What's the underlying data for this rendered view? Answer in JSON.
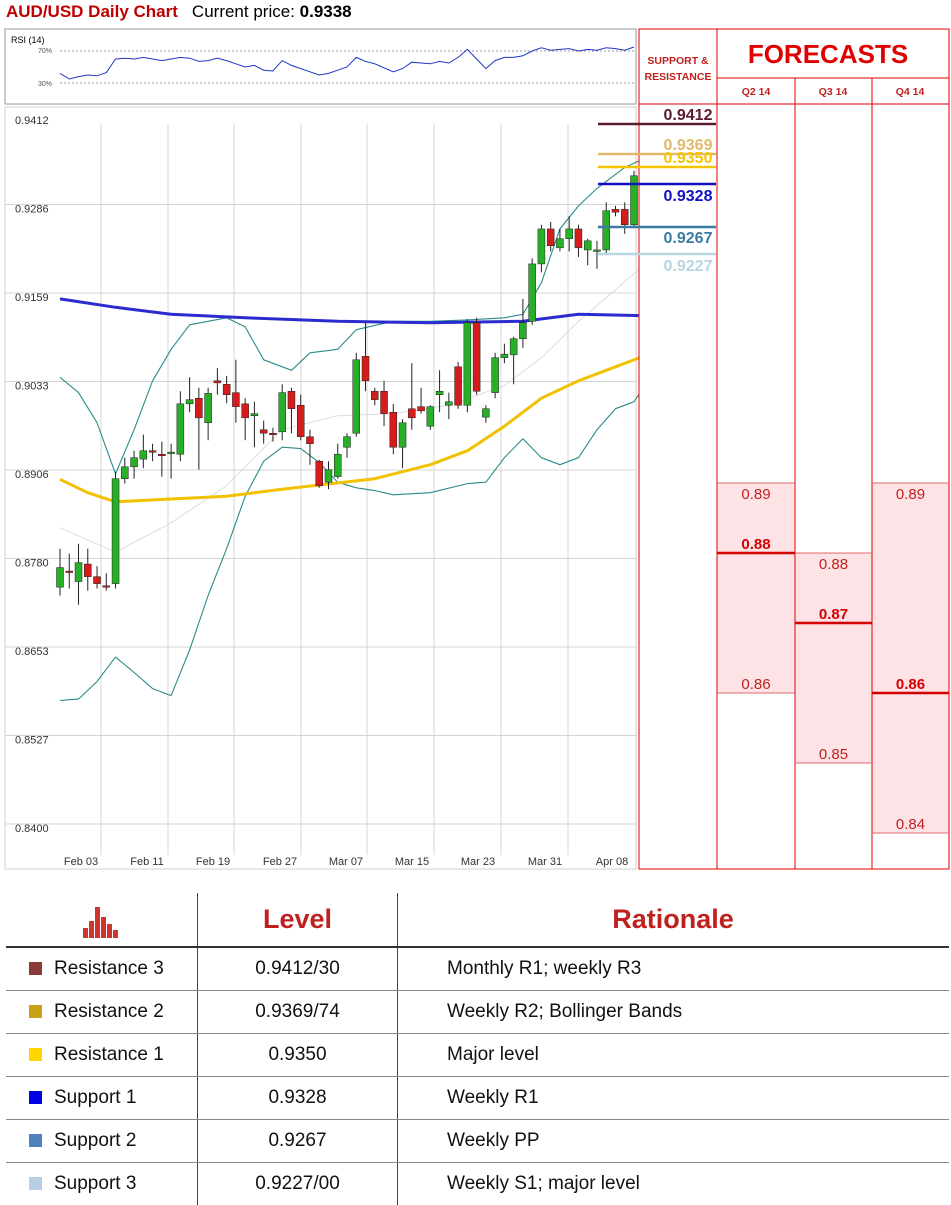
{
  "header": {
    "title": "AUD/USD Daily Chart",
    "price_label": "Current price:",
    "price_value": "0.9338"
  },
  "rsi": {
    "label": "RSI (14)",
    "level_high": "70%",
    "level_low": "30%"
  },
  "colors": {
    "red": "#c0211f",
    "r3": "#5a1a32",
    "r2": "#e2b96a",
    "r1": "#f5c400",
    "s1": "#1010c0",
    "s2": "#3c7ca3",
    "s3": "#b8d6e2",
    "candle_up": "#27b027",
    "candle_down": "#d41c1c",
    "ma_blue": "#2b2bd0",
    "ma_yellow": "#f2c100",
    "bands": "#2b8b8b"
  },
  "panel": {
    "sr_title_line1": "SUPPORT &",
    "sr_title_line2": "RESISTANCE",
    "forecasts_title": "FORECASTS",
    "quarters": [
      "Q2 14",
      "Q3 14",
      "Q4 14"
    ]
  },
  "sr_levels": [
    {
      "label": "0.9412",
      "value": 0.9412,
      "color": "#5a1a32"
    },
    {
      "label": "0.9369",
      "value": 0.9369,
      "color": "#e2b96a"
    },
    {
      "label": "0.9350",
      "value": 0.935,
      "color": "#f5c400"
    },
    {
      "label": "0.9328",
      "value": 0.9328,
      "color": "#1010c0"
    },
    {
      "label": "0.9267",
      "value": 0.9267,
      "color": "#3c7ca3"
    },
    {
      "label": "0.9227",
      "value": 0.9227,
      "color": "#b8d6e2"
    }
  ],
  "forecasts": [
    {
      "quarter": "Q2 14",
      "high": 0.89,
      "mid": 0.88,
      "low": 0.86,
      "high_label": "0.89",
      "mid_label": "0.88",
      "low_label": "0.86"
    },
    {
      "quarter": "Q3 14",
      "high": 0.88,
      "mid": 0.87,
      "low": 0.85,
      "high_label": "0.88",
      "mid_label": "0.87",
      "low_label": "0.85"
    },
    {
      "quarter": "Q4 14",
      "high": 0.89,
      "mid": 0.86,
      "low": 0.84,
      "high_label": "0.89",
      "mid_label": "0.86",
      "low_label": "0.84"
    }
  ],
  "chart_data": {
    "type": "candlestick",
    "y_ticks": [
      "0.9412",
      "0.9286",
      "0.9159",
      "0.9033",
      "0.8906",
      "0.8780",
      "0.8653",
      "0.8527",
      "0.8400"
    ],
    "ylim": [
      0.84,
      0.9412
    ],
    "x_ticks": [
      "Feb 03",
      "Feb 11",
      "Feb 19",
      "Feb 27",
      "Mar 07",
      "Mar 15",
      "Mar 23",
      "Mar 31",
      "Apr 08"
    ],
    "candles": [
      {
        "o": 0.875,
        "h": 0.8805,
        "l": 0.8738,
        "c": 0.8778
      },
      {
        "o": 0.8773,
        "h": 0.8798,
        "l": 0.8748,
        "c": 0.8772
      },
      {
        "o": 0.8758,
        "h": 0.8812,
        "l": 0.8725,
        "c": 0.8785
      },
      {
        "o": 0.8783,
        "h": 0.8805,
        "l": 0.8745,
        "c": 0.8765
      },
      {
        "o": 0.8765,
        "h": 0.878,
        "l": 0.8748,
        "c": 0.8755
      },
      {
        "o": 0.8752,
        "h": 0.877,
        "l": 0.8745,
        "c": 0.875
      },
      {
        "o": 0.8755,
        "h": 0.8915,
        "l": 0.8748,
        "c": 0.8905
      },
      {
        "o": 0.8905,
        "h": 0.8935,
        "l": 0.8898,
        "c": 0.8922
      },
      {
        "o": 0.8922,
        "h": 0.8945,
        "l": 0.8905,
        "c": 0.8935
      },
      {
        "o": 0.8933,
        "h": 0.8968,
        "l": 0.892,
        "c": 0.8945
      },
      {
        "o": 0.8945,
        "h": 0.8955,
        "l": 0.893,
        "c": 0.8943
      },
      {
        "o": 0.894,
        "h": 0.8958,
        "l": 0.8908,
        "c": 0.8938
      },
      {
        "o": 0.8942,
        "h": 0.8955,
        "l": 0.8905,
        "c": 0.8943
      },
      {
        "o": 0.894,
        "h": 0.903,
        "l": 0.893,
        "c": 0.9012
      },
      {
        "o": 0.9012,
        "h": 0.905,
        "l": 0.9,
        "c": 0.9018
      },
      {
        "o": 0.902,
        "h": 0.9035,
        "l": 0.8918,
        "c": 0.8992
      },
      {
        "o": 0.8985,
        "h": 0.9035,
        "l": 0.896,
        "c": 0.9027
      },
      {
        "o": 0.9045,
        "h": 0.9063,
        "l": 0.9025,
        "c": 0.9042
      },
      {
        "o": 0.904,
        "h": 0.9052,
        "l": 0.9013,
        "c": 0.9025
      },
      {
        "o": 0.9028,
        "h": 0.9075,
        "l": 0.8985,
        "c": 0.9008
      },
      {
        "o": 0.9012,
        "h": 0.902,
        "l": 0.896,
        "c": 0.8992
      },
      {
        "o": 0.8995,
        "h": 0.9015,
        "l": 0.895,
        "c": 0.8998
      },
      {
        "o": 0.8975,
        "h": 0.8988,
        "l": 0.8955,
        "c": 0.897
      },
      {
        "o": 0.897,
        "h": 0.8978,
        "l": 0.8958,
        "c": 0.8968
      },
      {
        "o": 0.8972,
        "h": 0.904,
        "l": 0.896,
        "c": 0.9028
      },
      {
        "o": 0.903,
        "h": 0.9035,
        "l": 0.897,
        "c": 0.9005
      },
      {
        "o": 0.901,
        "h": 0.9025,
        "l": 0.896,
        "c": 0.8965
      },
      {
        "o": 0.8965,
        "h": 0.8975,
        "l": 0.8925,
        "c": 0.8955
      },
      {
        "o": 0.893,
        "h": 0.8932,
        "l": 0.8892,
        "c": 0.8895
      },
      {
        "o": 0.89,
        "h": 0.893,
        "l": 0.889,
        "c": 0.8918
      },
      {
        "o": 0.8908,
        "h": 0.8955,
        "l": 0.8905,
        "c": 0.894
      },
      {
        "o": 0.895,
        "h": 0.897,
        "l": 0.8935,
        "c": 0.8965
      },
      {
        "o": 0.897,
        "h": 0.9085,
        "l": 0.8965,
        "c": 0.9075
      },
      {
        "o": 0.908,
        "h": 0.9128,
        "l": 0.903,
        "c": 0.9045
      },
      {
        "o": 0.903,
        "h": 0.9035,
        "l": 0.901,
        "c": 0.9018
      },
      {
        "o": 0.903,
        "h": 0.9045,
        "l": 0.898,
        "c": 0.8998
      },
      {
        "o": 0.9,
        "h": 0.9012,
        "l": 0.894,
        "c": 0.895
      },
      {
        "o": 0.895,
        "h": 0.899,
        "l": 0.892,
        "c": 0.8985
      },
      {
        "o": 0.9005,
        "h": 0.907,
        "l": 0.8975,
        "c": 0.8992
      },
      {
        "o": 0.9008,
        "h": 0.9035,
        "l": 0.8998,
        "c": 0.9002
      },
      {
        "o": 0.898,
        "h": 0.901,
        "l": 0.8975,
        "c": 0.9008
      },
      {
        "o": 0.9025,
        "h": 0.906,
        "l": 0.9,
        "c": 0.903
      },
      {
        "o": 0.901,
        "h": 0.9028,
        "l": 0.899,
        "c": 0.9015
      },
      {
        "o": 0.9065,
        "h": 0.9072,
        "l": 0.9005,
        "c": 0.901
      },
      {
        "o": 0.901,
        "h": 0.9133,
        "l": 0.9,
        "c": 0.9128
      },
      {
        "o": 0.9128,
        "h": 0.9135,
        "l": 0.9025,
        "c": 0.903
      },
      {
        "o": 0.8993,
        "h": 0.901,
        "l": 0.8985,
        "c": 0.9005
      },
      {
        "o": 0.9028,
        "h": 0.9085,
        "l": 0.902,
        "c": 0.9078
      },
      {
        "o": 0.9078,
        "h": 0.9098,
        "l": 0.907,
        "c": 0.9083
      },
      {
        "o": 0.9082,
        "h": 0.9108,
        "l": 0.904,
        "c": 0.9105
      },
      {
        "o": 0.9105,
        "h": 0.9162,
        "l": 0.9092,
        "c": 0.9128
      },
      {
        "o": 0.913,
        "h": 0.922,
        "l": 0.9125,
        "c": 0.9212
      },
      {
        "o": 0.9212,
        "h": 0.9268,
        "l": 0.92,
        "c": 0.9262
      },
      {
        "o": 0.9262,
        "h": 0.9272,
        "l": 0.923,
        "c": 0.9238
      },
      {
        "o": 0.9235,
        "h": 0.9262,
        "l": 0.923,
        "c": 0.9248
      },
      {
        "o": 0.9248,
        "h": 0.928,
        "l": 0.923,
        "c": 0.9262
      },
      {
        "o": 0.9262,
        "h": 0.9268,
        "l": 0.9222,
        "c": 0.9235
      },
      {
        "o": 0.9232,
        "h": 0.9248,
        "l": 0.921,
        "c": 0.9245
      },
      {
        "o": 0.9232,
        "h": 0.9245,
        "l": 0.9205,
        "c": 0.9232
      },
      {
        "o": 0.9232,
        "h": 0.93,
        "l": 0.9225,
        "c": 0.9288
      },
      {
        "o": 0.929,
        "h": 0.9295,
        "l": 0.928,
        "c": 0.9286
      },
      {
        "o": 0.929,
        "h": 0.93,
        "l": 0.9255,
        "c": 0.9268
      },
      {
        "o": 0.9268,
        "h": 0.9345,
        "l": 0.9265,
        "c": 0.9338
      }
    ],
    "series": [
      {
        "name": "",
        "kind": "ma_blue",
        "points": [
          [
            0,
            0.9162
          ],
          [
            6,
            0.915
          ],
          [
            12,
            0.914
          ],
          [
            20,
            0.9135
          ],
          [
            30,
            0.913
          ],
          [
            40,
            0.9128
          ],
          [
            50,
            0.913
          ],
          [
            56,
            0.914
          ],
          [
            63,
            0.9138
          ]
        ]
      },
      {
        "name": "",
        "kind": "ma_yellow",
        "points": [
          [
            0,
            0.8904
          ],
          [
            3,
            0.8885
          ],
          [
            6,
            0.8872
          ],
          [
            12,
            0.8876
          ],
          [
            18,
            0.888
          ],
          [
            24,
            0.889
          ],
          [
            28,
            0.8896
          ],
          [
            34,
            0.8905
          ],
          [
            40,
            0.8925
          ],
          [
            44,
            0.8945
          ],
          [
            48,
            0.898
          ],
          [
            52,
            0.902
          ],
          [
            56,
            0.9045
          ],
          [
            60,
            0.9065
          ],
          [
            63,
            0.908
          ]
        ]
      },
      {
        "name": "",
        "kind": "band_upper",
        "points": [
          [
            0,
            0.905
          ],
          [
            2,
            0.9028
          ],
          [
            4,
            0.8985
          ],
          [
            6,
            0.8912
          ],
          [
            8,
            0.8975
          ],
          [
            10,
            0.9045
          ],
          [
            12,
            0.909
          ],
          [
            14,
            0.9125
          ],
          [
            16,
            0.913
          ],
          [
            18,
            0.9135
          ],
          [
            20,
            0.9122
          ],
          [
            22,
            0.9075
          ],
          [
            25,
            0.906
          ],
          [
            27,
            0.9085
          ],
          [
            30,
            0.909
          ],
          [
            32,
            0.9118
          ],
          [
            36,
            0.913
          ],
          [
            40,
            0.913
          ],
          [
            44,
            0.9132
          ],
          [
            48,
            0.9135
          ],
          [
            50,
            0.914
          ],
          [
            52,
            0.9185
          ],
          [
            54,
            0.9262
          ],
          [
            56,
            0.9295
          ],
          [
            58,
            0.932
          ],
          [
            61,
            0.935
          ],
          [
            63,
            0.9362
          ]
        ]
      },
      {
        "name": "",
        "kind": "band_lower",
        "points": [
          [
            0,
            0.8588
          ],
          [
            2,
            0.859
          ],
          [
            4,
            0.8615
          ],
          [
            6,
            0.865
          ],
          [
            8,
            0.8628
          ],
          [
            10,
            0.8605
          ],
          [
            12,
            0.8595
          ],
          [
            14,
            0.866
          ],
          [
            16,
            0.8738
          ],
          [
            18,
            0.8805
          ],
          [
            20,
            0.888
          ],
          [
            22,
            0.893
          ],
          [
            24,
            0.895
          ],
          [
            26,
            0.8948
          ],
          [
            28,
            0.8928
          ],
          [
            30,
            0.89
          ],
          [
            32,
            0.8892
          ],
          [
            34,
            0.8888
          ],
          [
            36,
            0.8882
          ],
          [
            40,
            0.8885
          ],
          [
            44,
            0.8898
          ],
          [
            46,
            0.89
          ],
          [
            48,
            0.8935
          ],
          [
            50,
            0.8962
          ],
          [
            52,
            0.8935
          ],
          [
            54,
            0.8925
          ],
          [
            56,
            0.8935
          ],
          [
            58,
            0.8975
          ],
          [
            60,
            0.9005
          ],
          [
            62,
            0.9015
          ],
          [
            63,
            0.9035
          ]
        ]
      },
      {
        "name": "",
        "kind": "faint",
        "points": [
          [
            0,
            0.8835
          ],
          [
            6,
            0.88
          ],
          [
            12,
            0.8842
          ],
          [
            18,
            0.8895
          ],
          [
            24,
            0.8975
          ],
          [
            30,
            0.8995
          ],
          [
            36,
            0.8998
          ],
          [
            42,
            0.901
          ],
          [
            48,
            0.9038
          ],
          [
            52,
            0.9078
          ],
          [
            56,
            0.913
          ],
          [
            60,
            0.9175
          ],
          [
            63,
            0.921
          ]
        ]
      }
    ],
    "rsi_values": [
      42,
      35,
      38,
      40,
      39,
      43,
      60,
      61,
      60,
      62,
      60,
      58,
      60,
      62,
      61,
      57,
      58,
      61,
      58,
      54,
      50,
      52,
      46,
      45,
      58,
      52,
      48,
      44,
      40,
      42,
      46,
      50,
      62,
      57,
      54,
      49,
      44,
      48,
      56,
      55,
      54,
      57,
      55,
      62,
      72,
      60,
      48,
      58,
      62,
      62,
      64,
      70,
      74,
      71,
      72,
      73,
      70,
      72,
      71,
      74,
      73,
      71,
      75
    ]
  },
  "table": {
    "header_level": "Level",
    "header_rationale": "Rationale",
    "rows": [
      {
        "name": "Resistance 3",
        "level": "0.9412/30",
        "rationale": "Monthly R1; weekly R3",
        "color": "#8b3a3a"
      },
      {
        "name": "Resistance 2",
        "level": "0.9369/74",
        "rationale": "Weekly R2; Bollinger Bands",
        "color": "#c9a017"
      },
      {
        "name": "Resistance 1",
        "level": "0.9350",
        "rationale": "Major level",
        "color": "#ffd400"
      },
      {
        "name": "Support 1",
        "level": "0.9328",
        "rationale": "Weekly R1",
        "color": "#0000e0"
      },
      {
        "name": "Support 2",
        "level": "0.9267",
        "rationale": "Weekly PP",
        "color": "#4f81bd"
      },
      {
        "name": "Support 3",
        "level": "0.9227/00",
        "rationale": "Weekly S1; major level",
        "color": "#b8cce4"
      }
    ]
  }
}
